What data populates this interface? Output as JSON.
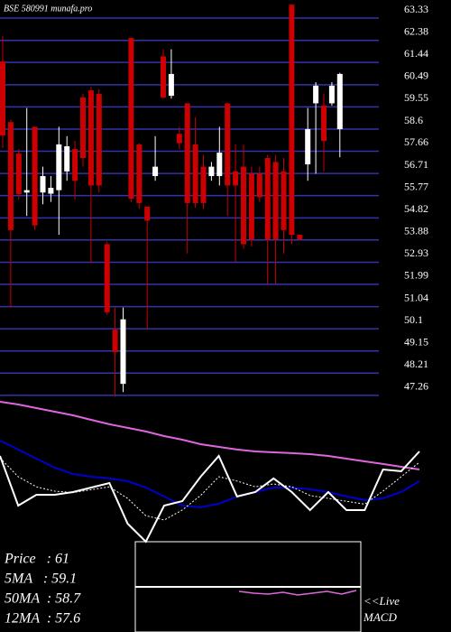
{
  "chart_data": [
    {
      "type": "candlestick",
      "title": "BSE 580991 munafa.pro",
      "open": [
        61.48,
        58.9,
        57.56,
        55.9,
        58.7,
        55.9,
        55.85,
        56.0,
        56.8,
        57.75,
        59.95,
        60.25,
        60.1,
        53.7,
        50.06,
        47.75,
        62.48,
        57.95,
        55.3,
        56.6,
        61.7,
        60.02,
        58.4,
        59.7,
        57.95,
        57.0,
        56.6,
        56.6,
        59.7,
        56.8,
        57.0,
        56.7,
        56.7,
        57.37,
        57.2,
        56.8,
        63.9,
        54.1,
        57.1,
        59.7,
        59.6,
        59.7,
        58.6
      ],
      "high": [
        62.56,
        59.0,
        57.75,
        59.5,
        58.7,
        57.0,
        56.6,
        58.7,
        58.3,
        58.1,
        60.1,
        60.4,
        60.3,
        53.8,
        51.0,
        51.0,
        62.5,
        58.0,
        55.3,
        58.3,
        62.0,
        62.0,
        58.7,
        59.7,
        59.1,
        57.5,
        57.2,
        58.7,
        59.7,
        57.95,
        57.95,
        57.0,
        57.0,
        57.5,
        57.5,
        57.37,
        63.9,
        54.1,
        59.5,
        60.6,
        60.1,
        60.6,
        61.0
      ],
      "low": [
        57.8,
        51.0,
        55.6,
        54.9,
        54.3,
        55.4,
        55.5,
        54.1,
        56.4,
        55.6,
        57.0,
        52.9,
        55.9,
        50.7,
        47.2,
        47.4,
        55.5,
        55.2,
        50.1,
        56.4,
        59.9,
        59.9,
        57.75,
        53.3,
        55.25,
        55.2,
        56.4,
        56.2,
        54.9,
        52.95,
        53.5,
        53.6,
        55.5,
        52.0,
        52.0,
        53.3,
        53.7,
        53.9,
        56.4,
        56.7,
        56.8,
        59.6,
        57.4
      ],
      "close": [
        58.33,
        54.3,
        55.83,
        56.0,
        54.5,
        56.6,
        56.1,
        57.95,
        57.87,
        56.4,
        57.37,
        56.2,
        56.2,
        50.8,
        49.1,
        50.5,
        55.64,
        55.45,
        54.7,
        57.0,
        59.95,
        60.95,
        58.0,
        55.45,
        55.45,
        55.45,
        57.0,
        57.6,
        56.2,
        56.2,
        53.7,
        53.9,
        55.7,
        53.9,
        53.9,
        54.3,
        54.1,
        53.9,
        58.6,
        60.45,
        58.1,
        60.45,
        60.95
      ],
      "up_color": "#ffffff",
      "down_color": "#cc0000",
      "grid_color": "#3333aa",
      "ylim": [
        47.18,
        64.1
      ],
      "yticks": [
        63.33,
        62.38,
        61.44,
        60.49,
        59.55,
        58.6,
        57.66,
        56.71,
        55.77,
        54.82,
        53.88,
        52.93,
        51.99,
        51.04,
        50.1,
        49.15,
        48.21,
        47.26
      ],
      "grid": true
    },
    {
      "type": "line",
      "annotations": [
        "Price   : 61",
        "5MA   : 59.1",
        "50MA  : 58.7",
        "12MA  : 57.6"
      ],
      "ylim": [
        0,
        100
      ],
      "series": [
        {
          "color": "#dd66dd",
          "values": [
            96.9,
            95,
            92.5,
            90,
            87.5,
            84.4,
            81.3,
            78.8,
            76.3,
            73.1,
            70.6,
            67.5,
            65.6,
            63.8,
            62.5,
            61.9,
            61.3,
            60.6,
            59.4,
            57.5,
            55.6,
            53.8,
            51.9,
            50
          ]
        },
        {
          "color": "#0000cc",
          "values": [
            70,
            63.8,
            57.5,
            51.3,
            46.9,
            45,
            43.8,
            41.9,
            37.5,
            31.3,
            25,
            23.8,
            26.3,
            31.3,
            34.4,
            37.5,
            37.5,
            36.3,
            34.4,
            31.3,
            28.8,
            30,
            34.4,
            41.9
          ]
        },
        {
          "color": "#ffffff",
          "values": [
            59.4,
            25,
            32.5,
            32.5,
            34.4,
            37.5,
            40.6,
            12.5,
            0,
            25,
            28.1,
            45,
            59.4,
            31.3,
            34.4,
            43.8,
            34.4,
            21.9,
            34.4,
            21.9,
            21.9,
            50,
            48.8,
            62.5
          ]
        },
        {
          "color": "#ffffff",
          "dashed": true,
          "values": [
            58,
            45,
            38,
            35,
            34,
            36,
            38,
            30,
            18,
            15,
            22,
            32,
            45,
            42,
            38,
            40,
            38,
            32,
            30,
            28,
            26,
            35,
            45,
            55
          ]
        }
      ]
    },
    {
      "type": "macd",
      "title": [
        "<<Live",
        "MACD"
      ],
      "ylim": [
        -1,
        1
      ],
      "yticks": [
        0
      ],
      "color": "#dd66dd",
      "values": [
        -0.1,
        -0.14,
        -0.16,
        -0.12,
        -0.18,
        -0.14,
        -0.1,
        -0.16,
        -0.08
      ]
    }
  ]
}
